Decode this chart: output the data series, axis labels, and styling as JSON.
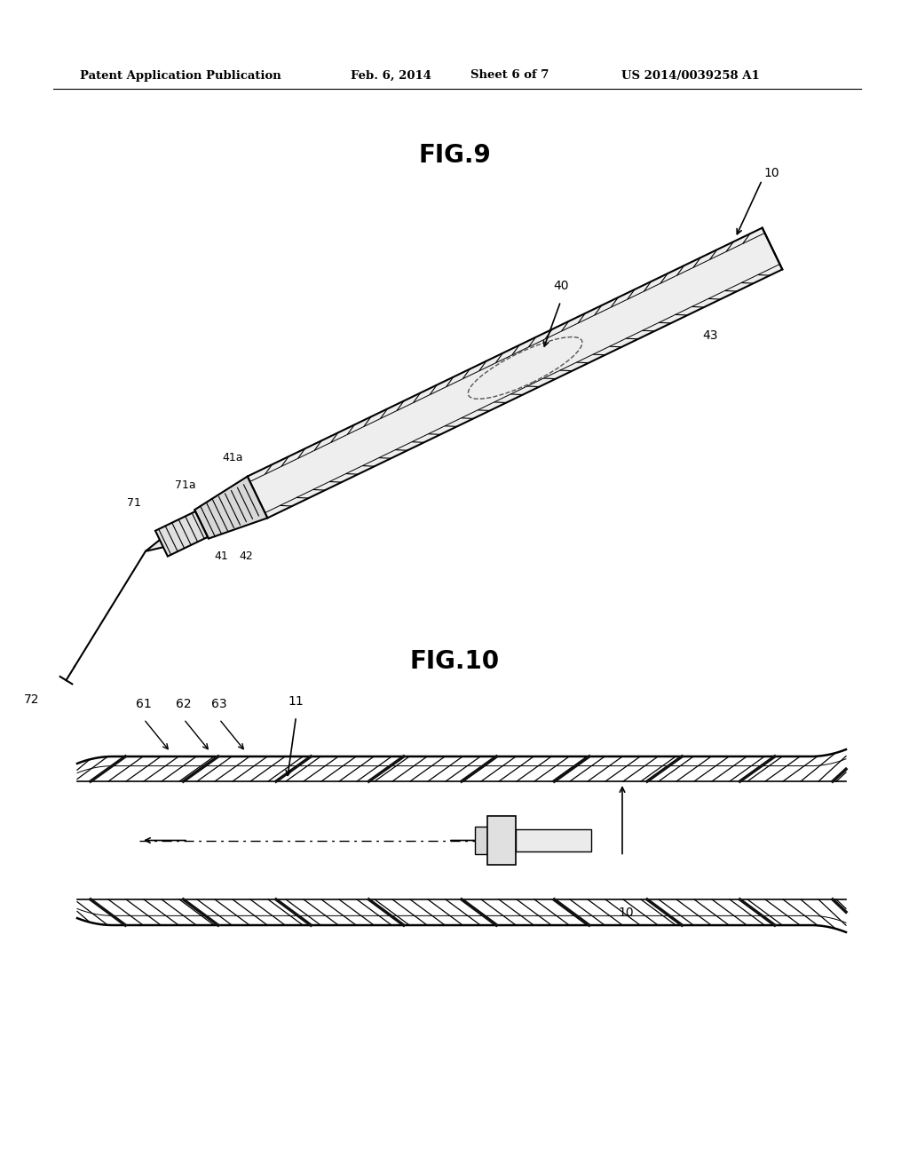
{
  "bg_color": "#ffffff",
  "header_text": "Patent Application Publication",
  "header_date": "Feb. 6, 2014",
  "header_sheet": "Sheet 6 of 7",
  "header_patent": "US 2014/0039258 A1",
  "fig9_title": "FIG.9",
  "fig10_title": "FIG.10",
  "line_color": "#000000"
}
